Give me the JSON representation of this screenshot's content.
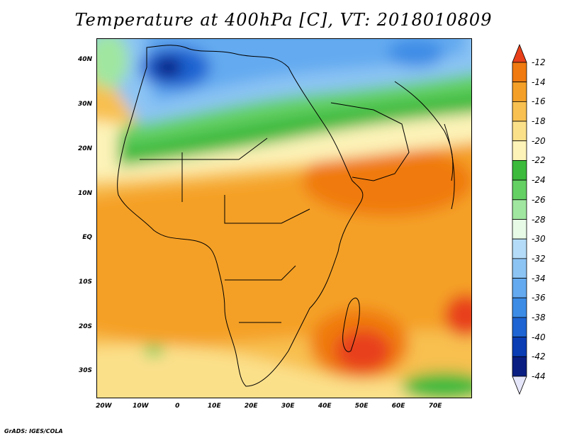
{
  "title": "Temperature at 400hPa [C], VT: 2018010809",
  "credit": "GrADS: IGES/COLA",
  "map": {
    "lon_range": [
      -22,
      80
    ],
    "lat_range": [
      -36,
      45
    ],
    "y_ticks": [
      {
        "label": "40N",
        "lat": 40
      },
      {
        "label": "30N",
        "lat": 30
      },
      {
        "label": "20N",
        "lat": 20
      },
      {
        "label": "10N",
        "lat": 10
      },
      {
        "label": "EQ",
        "lat": 0
      },
      {
        "label": "10S",
        "lat": -10
      },
      {
        "label": "20S",
        "lat": -20
      },
      {
        "label": "30S",
        "lat": -30
      }
    ],
    "x_ticks": [
      {
        "label": "20W",
        "lon": -20
      },
      {
        "label": "10W",
        "lon": -10
      },
      {
        "label": "0",
        "lon": 0
      },
      {
        "label": "10E",
        "lon": 10
      },
      {
        "label": "20E",
        "lon": 20
      },
      {
        "label": "30E",
        "lon": 30
      },
      {
        "label": "40E",
        "lon": 40
      },
      {
        "label": "50E",
        "lon": 50
      },
      {
        "label": "60E",
        "lon": 60
      },
      {
        "label": "70E",
        "lon": 70
      }
    ]
  },
  "colorbar": {
    "labels": [
      "-12",
      "-14",
      "-16",
      "-18",
      "-20",
      "-22",
      "-24",
      "-26",
      "-28",
      "-30",
      "-32",
      "-34",
      "-36",
      "-38",
      "-40",
      "-42",
      "-44"
    ],
    "colors": [
      "#e8401a",
      "#f07a10",
      "#f4a028",
      "#f8c050",
      "#fbe08a",
      "#fdf3b8",
      "#3cba3c",
      "#64d064",
      "#a0e6a0",
      "#e6fae6",
      "#b4dcf8",
      "#8cc4f4",
      "#64aaf0",
      "#3c8ce6",
      "#1e64d2",
      "#0a3cb4",
      "#0a1e82"
    ],
    "top_arrow_color": "#e8401a",
    "bottom_arrow_color": "#e6e6fa"
  }
}
